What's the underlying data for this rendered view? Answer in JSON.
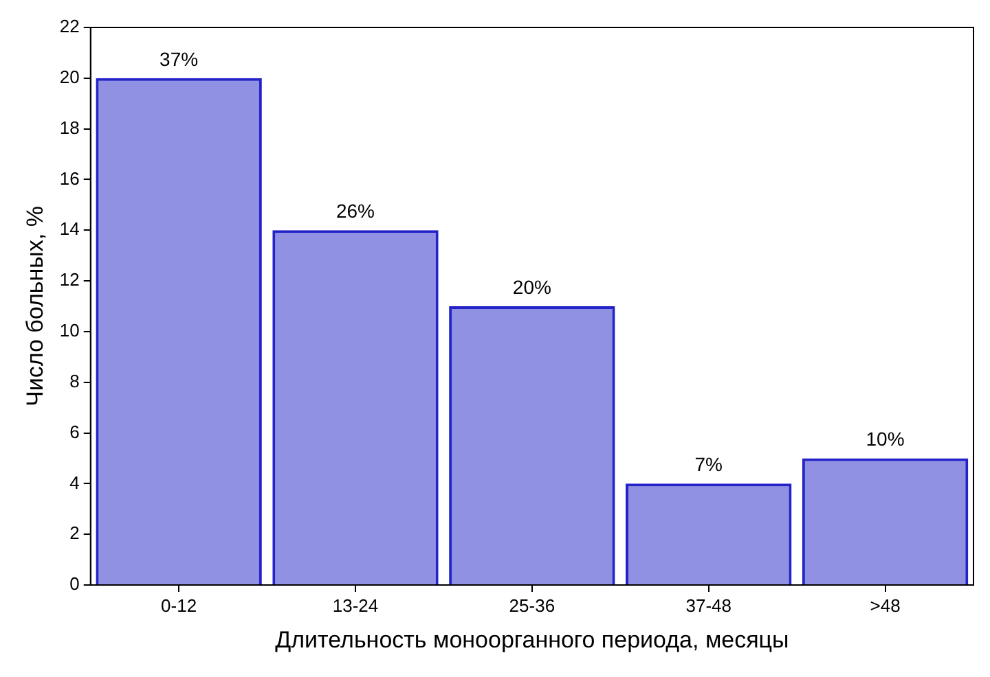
{
  "chart_data": {
    "type": "bar",
    "xlabel": "Длительность моноорганного периода, месяцы",
    "ylabel": "Число больных, %",
    "categories": [
      "0-12",
      "13-24",
      "25-36",
      "37-48",
      ">48"
    ],
    "values": [
      20,
      14,
      11,
      4,
      5
    ],
    "annotations": [
      {
        "text": "37%",
        "x": "0-12",
        "y": 20
      },
      {
        "text": "26%",
        "x": "13-24",
        "y": 14
      },
      {
        "text": "20%",
        "x": "25-36",
        "y": 11
      },
      {
        "text": "7%",
        "x": "37-48",
        "y": 4
      },
      {
        "text": "10%",
        "x": ">48",
        "y": 5
      }
    ],
    "color": "#2323c8",
    "ylim": [
      0,
      22
    ],
    "yticks": [
      0,
      2,
      4,
      6,
      8,
      10,
      12,
      14,
      16,
      18,
      20,
      22
    ],
    "grid": false,
    "legend": false
  }
}
